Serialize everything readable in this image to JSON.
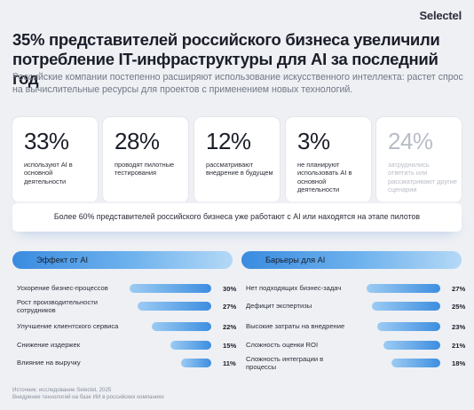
{
  "brand": "Selectel",
  "title": "35% представителей российского бизнеса увеличили потребление IT-инфраструктуры для AI за последний год",
  "subtitle": "Российские компании постепенно расширяют использование искусственного интеллекта: растет спрос на вычислительные ресурсы для проектов с применением новых технологий.",
  "stats": [
    {
      "value": "33%",
      "label": "используют AI в основной деятельности",
      "muted": false
    },
    {
      "value": "28%",
      "label": "проводят пилотные тестирования",
      "muted": false
    },
    {
      "value": "12%",
      "label": "рассматривают внедрение в будущем",
      "muted": false
    },
    {
      "value": "3%",
      "label": "не планируют использовать AI в основной деятельности",
      "muted": false
    },
    {
      "value": "24%",
      "label": "затруднились ответить или рассматривают другие сценарии",
      "muted": true
    }
  ],
  "summary": "Более 60% представителей российского бизнеса уже работают с AI или находятся на этапе пилотов",
  "chart_data": [
    {
      "type": "bar",
      "title": "Эффект от AI",
      "categories": [
        "Ускорение бизнес-процессов",
        "Рост производительности сотрудников",
        "Улучшение клиентского сервиса",
        "Снижение издержек",
        "Влияние на выручку"
      ],
      "values": [
        30,
        27,
        22,
        15,
        11
      ],
      "value_labels": [
        "30%",
        "27%",
        "22%",
        "15%",
        "11%"
      ],
      "xlim": [
        0,
        30
      ]
    },
    {
      "type": "bar",
      "title": "Барьеры для AI",
      "categories": [
        "Нет подходящих бизнес-задач",
        "Дефицит экспертизы",
        "Высокие затраты на внедрение",
        "Сложность оценки ROI",
        "Сложность интеграции в процессы"
      ],
      "values": [
        27,
        25,
        23,
        21,
        18
      ],
      "value_labels": [
        "27%",
        "25%",
        "23%",
        "21%",
        "18%"
      ],
      "xlim": [
        0,
        30
      ]
    }
  ],
  "footer": {
    "source": "Источник: исследование Selectel, 2025",
    "note": "Внедрение технологий на базе ИИ в российских компаниях"
  },
  "colors": {
    "accent": "#3d8ee0",
    "brand_mark": "#e6322e"
  }
}
